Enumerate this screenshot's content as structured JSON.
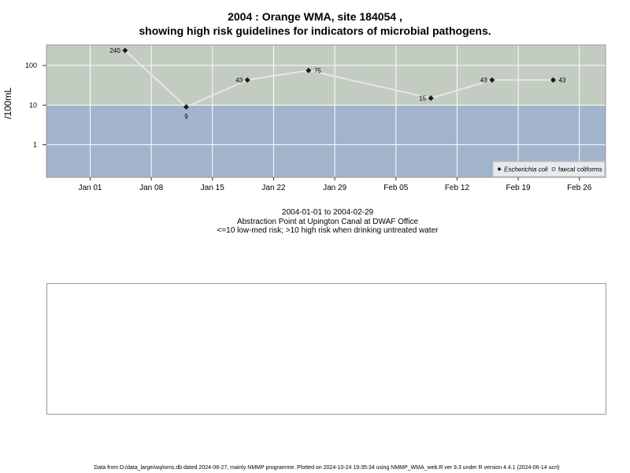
{
  "title_line1": "2004 : Orange WMA, site 184054 ,",
  "title_line2": "showing high risk guidelines for indicators of microbial pathogens.",
  "subtitle": {
    "line1": "2004-01-01 to 2004-02-29",
    "line2": "Abstraction Point at Upington Canal at DWAF Office",
    "line3": "<=10 low-med risk; >10 high risk when drinking untreated water"
  },
  "footer": "Data from D:/data_large/wq/wms.db dated 2024-08-27, mainly NMMP programme. Plotted on 2024-10-24 19:35:34 using NMMP_WMA_web.R ver 9.3 under R version 4.4.1 (2024-06-14 ucrt)",
  "colors": {
    "high_risk_band": "#c2ccc0",
    "low_risk_band": "#a2b3cc",
    "line": "#e6e6e6",
    "grid": "#ffffff",
    "point": "#1a1a1a"
  },
  "chart_data": {
    "type": "line",
    "ylabel": "/100mL",
    "yscale": "log",
    "ylim": [
      0.15,
      330
    ],
    "y_ticks": [
      {
        "value": 1,
        "label": "1"
      },
      {
        "value": 10,
        "label": "10"
      },
      {
        "value": 100,
        "label": "100"
      }
    ],
    "xlim": [
      "2003-12-27",
      "2004-02-29"
    ],
    "x_ticks": [
      {
        "date": "2004-01-01",
        "label": "Jan 01"
      },
      {
        "date": "2004-01-08",
        "label": "Jan 08"
      },
      {
        "date": "2004-01-15",
        "label": "Jan 15"
      },
      {
        "date": "2004-01-22",
        "label": "Jan 22"
      },
      {
        "date": "2004-01-29",
        "label": "Jan 29"
      },
      {
        "date": "2004-02-05",
        "label": "Feb 05"
      },
      {
        "date": "2004-02-12",
        "label": "Feb 12"
      },
      {
        "date": "2004-02-19",
        "label": "Feb 19"
      },
      {
        "date": "2004-02-26",
        "label": "Feb 26"
      }
    ],
    "threshold": 10,
    "series": [
      {
        "name": "Escherichia coli",
        "marker": "diamond",
        "points": [
          {
            "date": "2004-01-05",
            "value": 240,
            "label": "240",
            "label_side": "left"
          },
          {
            "date": "2004-01-12",
            "value": 9,
            "label": "9",
            "label_side": "below"
          },
          {
            "date": "2004-01-19",
            "value": 43,
            "label": "43",
            "label_side": "left"
          },
          {
            "date": "2004-01-26",
            "value": 75,
            "label": "75",
            "label_side": "right"
          },
          {
            "date": "2004-02-09",
            "value": 15,
            "label": "15",
            "label_side": "left"
          },
          {
            "date": "2004-02-16",
            "value": 43,
            "label": "43",
            "label_side": "left"
          },
          {
            "date": "2004-02-23",
            "value": 43,
            "label": "43",
            "label_side": "right"
          }
        ]
      },
      {
        "name": "faecal coliforms",
        "marker": "circle",
        "points": []
      }
    ],
    "legend_position": "bottom-right",
    "grid": true
  }
}
